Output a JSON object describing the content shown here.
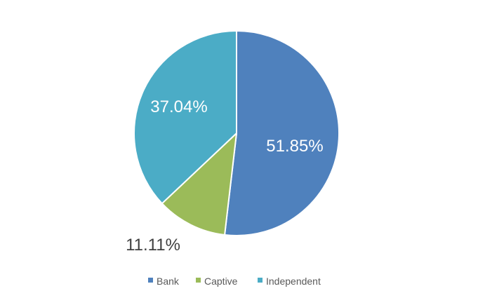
{
  "chart_data": {
    "type": "pie",
    "title": "",
    "categories": [
      "Bank",
      "Captive",
      "Independent"
    ],
    "values": [
      51.85,
      11.11,
      37.04
    ],
    "labels": [
      "51.85%",
      "11.11%",
      "37.04%"
    ],
    "colors": [
      "#4F81BD",
      "#9BBB59",
      "#4BACC6"
    ],
    "label_colors": [
      "#FFFFFF",
      "#404040",
      "#FFFFFF"
    ],
    "legend": {
      "position": "bottom",
      "entries": [
        "Bank",
        "Captive",
        "Independent"
      ]
    }
  }
}
